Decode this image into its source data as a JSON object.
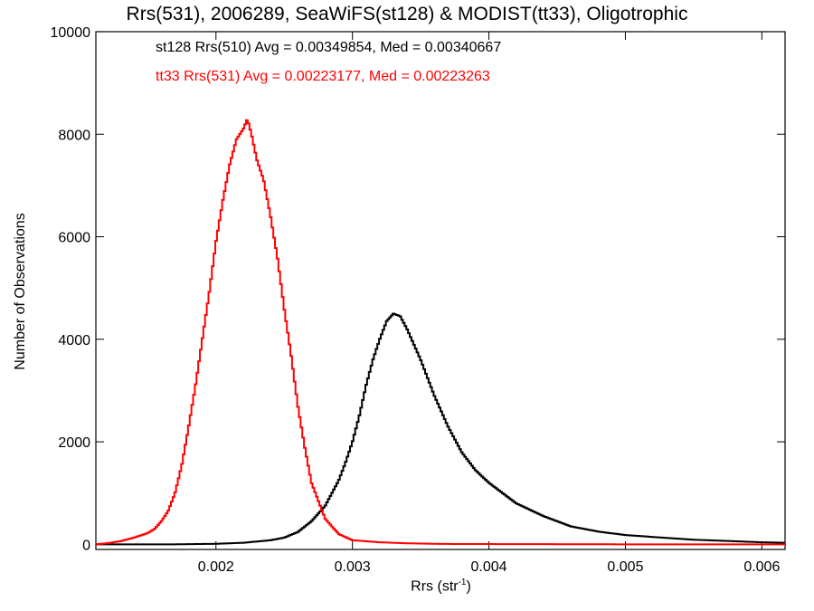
{
  "chart_data": {
    "type": "line",
    "title": "Rrs(531), 2006289, SeaWiFS(st128) & MODIST(tt33), Oligotrophic",
    "xlabel": "Rrs (str",
    "xlabel_sup": "-1",
    "xlabel_close": ")",
    "ylabel": "Number of Observations",
    "xlim": [
      0.00112,
      0.00617
    ],
    "ylim": [
      -100,
      10000
    ],
    "x_ticks": [
      0.002,
      0.003,
      0.004,
      0.005,
      0.006
    ],
    "x_tick_labels": [
      "0.002",
      "0.003",
      "0.004",
      "0.005",
      "0.006"
    ],
    "y_ticks": [
      0,
      2000,
      4000,
      6000,
      8000,
      10000
    ],
    "y_tick_labels": [
      "0",
      "2000",
      "4000",
      "6000",
      "8000",
      "10000"
    ],
    "grid": false,
    "legend_position": "top-left",
    "series": [
      {
        "name": "st128 Rrs(510) Avg = 0.00349854, Med = 0.00340667",
        "color": "#000000",
        "x": [
          0.00112,
          0.0014,
          0.0017,
          0.002,
          0.0022,
          0.0024,
          0.0025,
          0.0026,
          0.0027,
          0.0028,
          0.0029,
          0.00295,
          0.003,
          0.00305,
          0.0031,
          0.00315,
          0.0032,
          0.00325,
          0.0033,
          0.00335,
          0.0034,
          0.00345,
          0.0035,
          0.0036,
          0.0037,
          0.0038,
          0.0039,
          0.004,
          0.0042,
          0.0044,
          0.0046,
          0.0048,
          0.005,
          0.0055,
          0.006,
          0.00617
        ],
        "y": [
          0,
          0,
          0,
          10,
          30,
          80,
          130,
          240,
          450,
          750,
          1250,
          1600,
          2000,
          2500,
          3100,
          3600,
          4000,
          4350,
          4500,
          4450,
          4200,
          3900,
          3600,
          2900,
          2300,
          1800,
          1450,
          1200,
          800,
          550,
          350,
          250,
          180,
          90,
          40,
          30
        ]
      },
      {
        "name": "tt33 Rrs(531) Avg = 0.00223177, Med = 0.00223263",
        "color": "#ff0000",
        "x": [
          0.00112,
          0.0012,
          0.0013,
          0.0014,
          0.0015,
          0.00155,
          0.0016,
          0.00165,
          0.0017,
          0.00175,
          0.0018,
          0.00185,
          0.0019,
          0.00195,
          0.002,
          0.00205,
          0.0021,
          0.00215,
          0.0022,
          0.00223,
          0.00226,
          0.0023,
          0.00235,
          0.0024,
          0.00245,
          0.0025,
          0.00255,
          0.0026,
          0.00265,
          0.0027,
          0.0028,
          0.0029,
          0.003,
          0.0032,
          0.0034,
          0.0036,
          0.0038,
          0.004,
          0.005,
          0.006,
          0.00617
        ],
        "y": [
          0,
          20,
          60,
          130,
          220,
          300,
          450,
          650,
          1000,
          1550,
          2300,
          3100,
          4000,
          4900,
          5900,
          6700,
          7400,
          7900,
          8100,
          8300,
          8000,
          7500,
          7100,
          6400,
          5600,
          4600,
          3700,
          2700,
          1900,
          1200,
          500,
          200,
          80,
          40,
          20,
          10,
          5,
          5,
          0,
          0,
          0
        ]
      }
    ]
  }
}
